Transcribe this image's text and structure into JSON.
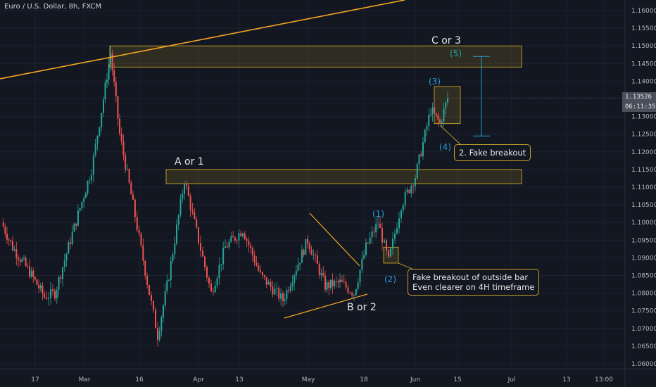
{
  "header": {
    "symbol": "Euro / U.S. Dollar, 8h, FXCM"
  },
  "price_tags": {
    "last_price": "1.13526",
    "countdown": "06:11:35"
  },
  "annotations": {
    "c_or_3": "C or 3",
    "a_or_1": "A or 1",
    "b_or_2": "B or 2",
    "wave_1": "(1)",
    "wave_2": "(2)",
    "wave_3": "(3)",
    "wave_4": "(4)",
    "wave_5": "(5)"
  },
  "callouts": {
    "fake_breakout": "2. Fake breakout",
    "outside_bar_line1": "Fake breakout of outside bar",
    "outside_bar_line2": "Even clearer on 4H timeframe"
  },
  "colors": {
    "background": "#131722",
    "up_candle": "#26a69a",
    "down_candle": "#ef5350",
    "zone_border": "#c9a227",
    "trendline": "#f5a623",
    "wave_label": "#2a9bd6"
  },
  "chart_data": {
    "type": "candlestick",
    "instrument": "Euro / U.S. Dollar",
    "timeframe": "8h",
    "source": "FXCM",
    "y_axis": {
      "ticks": [
        "1.16000",
        "1.15500",
        "1.15000",
        "1.14500",
        "1.14000",
        "1.13500",
        "1.13000",
        "1.12500",
        "1.12000",
        "1.11500",
        "1.11000",
        "1.10500",
        "1.10000",
        "1.09500",
        "1.09000",
        "1.08500",
        "1.08000",
        "1.07500",
        "1.07000",
        "1.06500",
        "1.06000"
      ],
      "range": [
        1.058,
        1.163
      ]
    },
    "x_axis": {
      "ticks": [
        "17",
        "Mar",
        "16",
        "Apr",
        "13",
        "May",
        "18",
        "Jun",
        "15",
        "Jul",
        "13",
        "13:00"
      ]
    },
    "price_path": [
      {
        "date": "Feb 10",
        "close": 1.1
      },
      {
        "date": "Feb 14",
        "close": 1.093
      },
      {
        "date": "Feb 18",
        "close": 1.086
      },
      {
        "date": "Feb 20",
        "close": 1.079
      },
      {
        "date": "Feb 24",
        "close": 1.08
      },
      {
        "date": "Feb 28",
        "close": 1.095
      },
      {
        "date": "Mar 03",
        "close": 1.115
      },
      {
        "date": "Mar 06",
        "close": 1.135
      },
      {
        "date": "Mar 09",
        "close": 1.148
      },
      {
        "date": "Mar 12",
        "close": 1.125
      },
      {
        "date": "Mar 16",
        "close": 1.105
      },
      {
        "date": "Mar 19",
        "close": 1.08
      },
      {
        "date": "Mar 20",
        "close": 1.068
      },
      {
        "date": "Mar 24",
        "close": 1.085
      },
      {
        "date": "Mar 27",
        "close": 1.112
      },
      {
        "date": "Apr 01",
        "close": 1.095
      },
      {
        "date": "Apr 06",
        "close": 1.08
      },
      {
        "date": "Apr 10",
        "close": 1.093
      },
      {
        "date": "Apr 15",
        "close": 1.098
      },
      {
        "date": "Apr 20",
        "close": 1.085
      },
      {
        "date": "Apr 24",
        "close": 1.078
      },
      {
        "date": "Apr 30",
        "close": 1.095
      },
      {
        "date": "May 06",
        "close": 1.082
      },
      {
        "date": "May 11",
        "close": 1.083
      },
      {
        "date": "May 15",
        "close": 1.08
      },
      {
        "date": "May 19",
        "close": 1.093
      },
      {
        "date": "May 21",
        "close": 1.1
      },
      {
        "date": "May 25",
        "close": 1.089
      },
      {
        "date": "May 28",
        "close": 1.105
      },
      {
        "date": "Jun 01",
        "close": 1.113
      },
      {
        "date": "Jun 05",
        "close": 1.132
      },
      {
        "date": "Jun 08",
        "close": 1.128
      },
      {
        "date": "Jun 10",
        "close": 1.1352
      }
    ],
    "zones": [
      {
        "name": "C or 3",
        "low": 1.144,
        "high": 1.15
      },
      {
        "name": "A or 1",
        "low": 1.111,
        "high": 1.115
      },
      {
        "name": "2. Fake breakout",
        "low": 1.128,
        "high": 1.1385
      },
      {
        "name": "Fake breakout of outside bar",
        "low": 1.0885,
        "high": 1.093
      }
    ],
    "last_price": 1.13526,
    "projection": {
      "from": 1.1245,
      "to": 1.147
    }
  }
}
